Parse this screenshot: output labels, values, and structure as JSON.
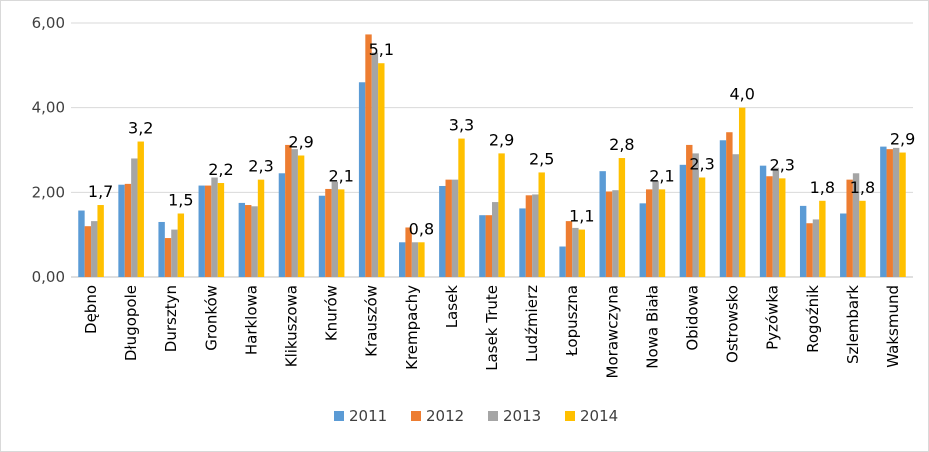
{
  "chart_data": {
    "type": "bar",
    "ylim": [
      0,
      6
    ],
    "y_ticks": [
      "0,00",
      "2,00",
      "4,00",
      "6,00"
    ],
    "y_tick_values": [
      0,
      2,
      4,
      6
    ],
    "grid": true,
    "legend_position": "bottom",
    "categories": [
      "Dębno",
      "Długopole",
      "Dursztyn",
      "Gronków",
      "Harklowa",
      "Klikuszowa",
      "Knurów",
      "Krauszów",
      "Krempachy",
      "Lasek",
      "Lasek Trute",
      "Ludźmierz",
      "Łopuszna",
      "Morawczyna",
      "Nowa Biała",
      "Obidowa",
      "Ostrowsko",
      "Pyzówka",
      "Rogoźnik",
      "Szlembark",
      "Waksmund"
    ],
    "series": [
      {
        "name": "2011",
        "color": "#5b9bd5",
        "values": [
          1.57,
          2.18,
          1.3,
          2.16,
          1.75,
          2.45,
          1.92,
          4.6,
          0.82,
          2.15,
          1.46,
          1.62,
          0.72,
          2.5,
          1.74,
          2.65,
          3.23,
          2.63,
          1.68,
          1.5,
          3.08
        ]
      },
      {
        "name": "2012",
        "color": "#ed7d31",
        "values": [
          1.2,
          2.2,
          0.92,
          2.16,
          1.7,
          3.12,
          2.08,
          5.73,
          1.17,
          2.3,
          1.46,
          1.93,
          1.32,
          2.02,
          2.07,
          3.12,
          3.42,
          2.38,
          1.27,
          2.3,
          3.02
        ]
      },
      {
        "name": "2013",
        "color": "#a5a5a5",
        "values": [
          1.32,
          2.8,
          1.12,
          2.35,
          1.67,
          3.02,
          2.25,
          5.3,
          0.82,
          2.3,
          1.77,
          1.95,
          1.16,
          2.05,
          2.27,
          2.92,
          2.9,
          2.58,
          1.36,
          2.45,
          3.05
        ]
      },
      {
        "name": "2014",
        "color": "#ffc000",
        "values": [
          1.7,
          3.2,
          1.5,
          2.22,
          2.3,
          2.87,
          2.07,
          5.05,
          0.82,
          3.27,
          2.92,
          2.47,
          1.12,
          2.81,
          2.07,
          2.35,
          4.0,
          2.33,
          1.8,
          1.8,
          2.94
        ]
      }
    ],
    "data_labels": [
      "1,7",
      "3,2",
      "1,5",
      "2,2",
      "2,3",
      "2,9",
      "2,1",
      "5,1",
      "0,8",
      "3,3",
      "2,9",
      "2,5",
      "1,1",
      "2,8",
      "2,1",
      "2,3",
      "4,0",
      "2,3",
      "1,8",
      "1,8",
      "2,9"
    ]
  }
}
